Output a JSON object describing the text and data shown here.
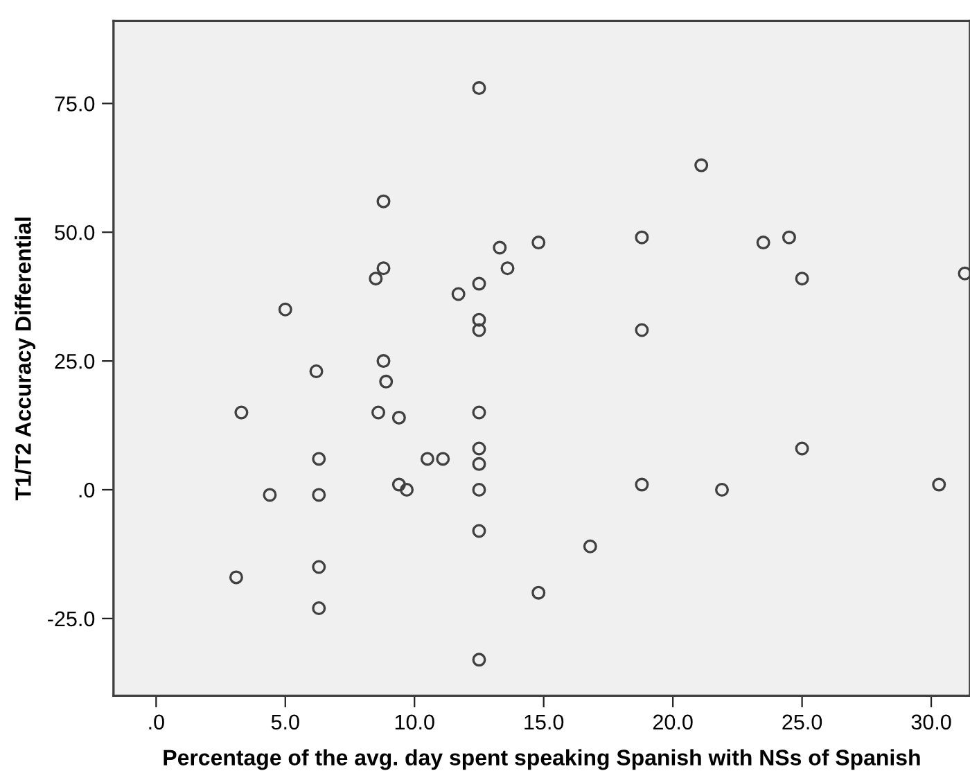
{
  "chart_data": {
    "type": "scatter",
    "xlabel": "Percentage of the avg. day spent speaking Spanish with NSs of Spanish",
    "ylabel": "T1/T2 Accuracy Differential",
    "marker": "circle",
    "grid": false,
    "legend": false,
    "series": [
      {
        "color": "#404040",
        "x": [
          12.5,
          8.8,
          13.3,
          14.8,
          8.8,
          8.5,
          13.6,
          12.5,
          11.7,
          5.0,
          12.5,
          12.5,
          8.8,
          6.2,
          21.1,
          18.8,
          23.5,
          24.5,
          25.0,
          31.3,
          18.8,
          8.9,
          3.3,
          8.6,
          9.4,
          12.5,
          12.5,
          10.5,
          11.1,
          6.3,
          12.5,
          9.4,
          9.7,
          12.5,
          4.4,
          6.3,
          12.5,
          3.1,
          6.3,
          6.3,
          14.8,
          12.5,
          16.8,
          18.8,
          21.9,
          25.0,
          30.3
        ],
        "values": [
          78,
          56,
          47,
          48,
          43,
          41,
          43,
          40,
          38,
          35,
          33,
          31,
          25,
          23,
          63,
          49,
          48,
          49,
          41,
          42,
          31,
          21,
          15,
          15,
          14,
          15,
          8,
          6,
          6,
          6,
          5,
          1,
          0,
          0,
          -1,
          -1,
          -8,
          -17,
          -15,
          -23,
          -20,
          -33,
          -11,
          1,
          0,
          8,
          1
        ]
      }
    ],
    "xlim": [
      -1.65,
      31.5
    ],
    "xticks": [
      {
        "value": 0,
        "label": ".0"
      },
      {
        "value": 5,
        "label": "5.0"
      },
      {
        "value": 10,
        "label": "10.0"
      },
      {
        "value": 15,
        "label": "15.0"
      },
      {
        "value": 20,
        "label": "20.0"
      },
      {
        "value": 25,
        "label": "25.0"
      },
      {
        "value": 30,
        "label": "30.0"
      }
    ],
    "ylim": [
      -40,
      91
    ],
    "yticks": [
      {
        "value": -25,
        "label": "-25.0"
      },
      {
        "value": 0,
        "label": ".0"
      },
      {
        "value": 25,
        "label": "25.0"
      },
      {
        "value": 50,
        "label": "50.0"
      },
      {
        "value": 75,
        "label": "75.0"
      }
    ]
  }
}
